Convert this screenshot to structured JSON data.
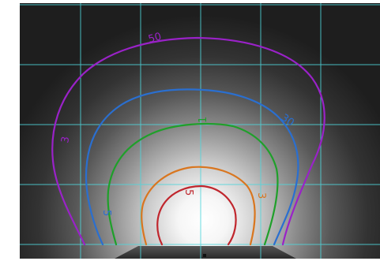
{
  "image": {
    "description_free": true,
    "colors": {
      "background_dark": "#1e1e1e",
      "glow_core": "#ffffff",
      "grid": "#4fd6dc",
      "floor": "#3a3a3a"
    }
  },
  "contours": [
    {
      "id": "contour-1",
      "color": "#c0262d",
      "label": ""
    },
    {
      "id": "contour-3",
      "color": "#d9761f",
      "label": "3"
    },
    {
      "id": "contour-5-inner",
      "color": "#b02a2a",
      "label": "5"
    },
    {
      "id": "contour-10",
      "color": "#1fa02a",
      "label": "1"
    },
    {
      "id": "contour-30",
      "color": "#2a6fd0",
      "label": "30"
    },
    {
      "id": "contour-50",
      "color": "#9a22c8",
      "label": "50"
    }
  ],
  "labels": {
    "purple_top": "50",
    "purple_left": "3",
    "blue_right": "30",
    "green_top": "1",
    "orange_right": "3",
    "red_top": "5",
    "blue_left_low": "5"
  }
}
